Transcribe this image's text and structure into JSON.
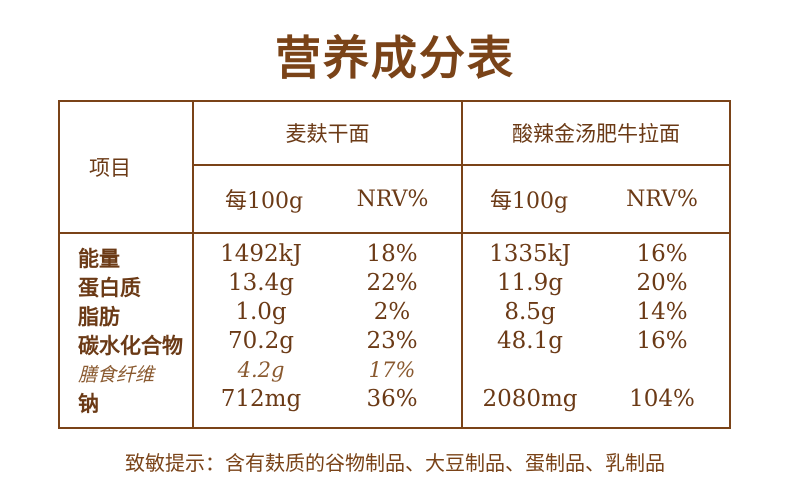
{
  "title": "营养成分表",
  "table": {
    "item_header": "项目",
    "products": [
      {
        "name": "麦麸干面",
        "per100g_label": "每100g",
        "nrv_label": "NRV%"
      },
      {
        "name": "酸辣金汤肥牛拉面",
        "per100g_label": "每100g",
        "nrv_label": "NRV%"
      }
    ],
    "rows": [
      {
        "label": "能量",
        "p1_value": "1492kJ",
        "p1_nrv": "18%",
        "p2_value": "1335kJ",
        "p2_nrv": "16%"
      },
      {
        "label": "蛋白质",
        "p1_value": "13.4g",
        "p1_nrv": "22%",
        "p2_value": "11.9g",
        "p2_nrv": "20%"
      },
      {
        "label": "脂肪",
        "p1_value": "1.0g",
        "p1_nrv": "2%",
        "p2_value": "8.5g",
        "p2_nrv": "14%"
      },
      {
        "label": "碳水化合物",
        "p1_value": "70.2g",
        "p1_nrv": "23%",
        "p2_value": "48.1g",
        "p2_nrv": "16%"
      },
      {
        "label": "膳食纤维",
        "p1_value": "4.2g",
        "p1_nrv": "17%",
        "p2_value": "",
        "p2_nrv": ""
      },
      {
        "label": "钠",
        "p1_value": "712mg",
        "p1_nrv": "36%",
        "p2_value": "2080mg",
        "p2_nrv": "104%"
      }
    ]
  },
  "allergen_note": "致敏提示：含有麸质的谷物制品、大豆制品、蛋制品、乳制品"
}
